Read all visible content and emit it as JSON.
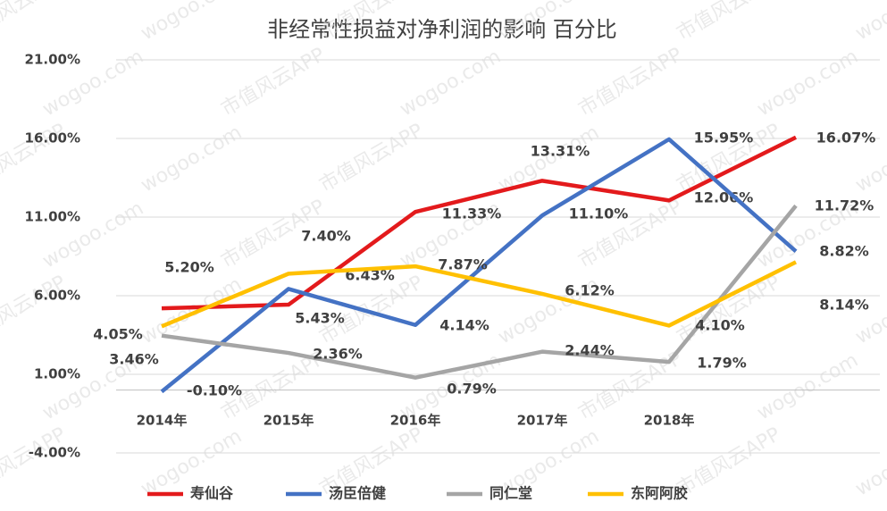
{
  "chart_data": {
    "type": "line",
    "title": "非经常性损益对净利润的影响 百分比",
    "watermark": [
      "市值风云APP",
      "wogoo.com"
    ],
    "categories": [
      "2014年",
      "2015年",
      "2016年",
      "2017年",
      "2018年",
      null
    ],
    "ylim": [
      -4,
      21
    ],
    "yticks": [
      {
        "value": -4,
        "label": "-4.00%"
      },
      {
        "value": 1,
        "label": "1.00%"
      },
      {
        "value": 6,
        "label": "6.00%"
      },
      {
        "value": 11,
        "label": "11.00%"
      },
      {
        "value": 16,
        "label": "16.00%"
      },
      {
        "value": 21,
        "label": "21.00%"
      }
    ],
    "grid": true,
    "legend": "bottom",
    "series": [
      {
        "name": "寿仙谷",
        "color": "#e31a1c",
        "values": [
          5.2,
          5.43,
          11.33,
          13.31,
          12.06,
          16.07
        ],
        "value_labels": [
          "5.20%",
          "5.43%",
          "11.33%",
          "13.31%",
          "12.06%",
          "16.07%"
        ]
      },
      {
        "name": "汤臣倍健",
        "color": "#4472c4",
        "values": [
          -0.1,
          6.43,
          4.14,
          11.1,
          15.95,
          8.82
        ],
        "value_labels": [
          "-0.10%",
          "6.43%",
          "4.14%",
          "11.10%",
          "15.95%",
          "8.82%"
        ]
      },
      {
        "name": "同仁堂",
        "color": "#a5a5a5",
        "values": [
          3.46,
          2.36,
          0.79,
          2.44,
          1.79,
          11.72
        ],
        "value_labels": [
          "3.46%",
          "2.36%",
          "0.79%",
          "2.44%",
          "1.79%",
          "11.72%"
        ]
      },
      {
        "name": "东阿阿胶",
        "color": "#ffc000",
        "values": [
          4.05,
          7.4,
          7.87,
          6.12,
          4.1,
          8.14
        ],
        "value_labels": [
          "4.05%",
          "7.40%",
          "7.87%",
          "6.12%",
          "4.10%",
          "8.14%"
        ]
      }
    ]
  }
}
